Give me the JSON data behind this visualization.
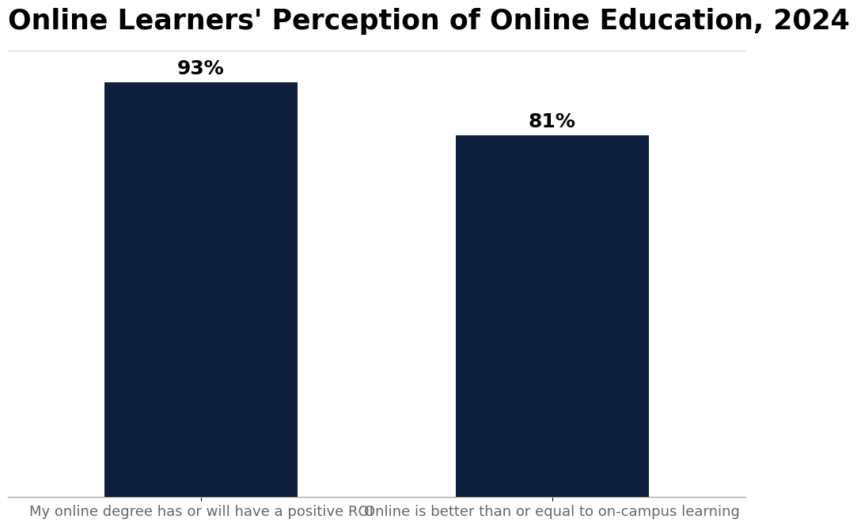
{
  "title": "Online Learners' Perception of Online Education, 2024",
  "categories": [
    "My online degree has or will have a positive ROI",
    "Online is better than or equal to on-campus learning"
  ],
  "values": [
    93,
    81
  ],
  "labels": [
    "93%",
    "81%"
  ],
  "bar_color": "#0d1f3c",
  "background_color": "#ffffff",
  "ylim": [
    0,
    100
  ],
  "title_fontsize": 25,
  "label_fontsize": 18,
  "xtick_fontsize": 13,
  "grid_color": "#cccccc",
  "bar_width": 0.55
}
